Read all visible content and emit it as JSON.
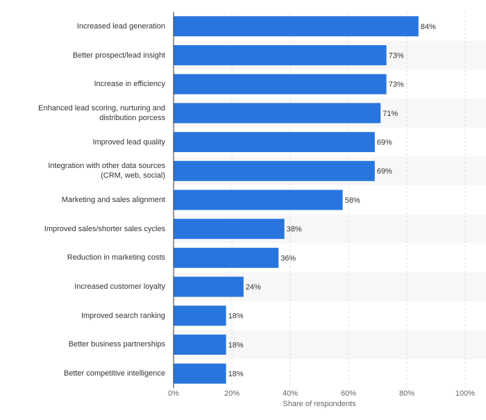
{
  "chart_data": {
    "type": "bar",
    "orientation": "horizontal",
    "categories": [
      "Increased lead generation",
      "Better prospect/lead insight",
      "Increase in efficiency",
      "Enhanced lead scoring, nurturing and\ndistribution porcess",
      "Improved lead quality",
      "Integration with other data sources\n(CRM, web, social)",
      "Marketing and sales alignment",
      "Improved sales/shorter sales cycles",
      "Reduction in marketing costs",
      "Increased customer loyalty",
      "Improved search ranking",
      "Better business partnerships",
      "Better competitive intelligence"
    ],
    "values": [
      84,
      73,
      73,
      71,
      69,
      69,
      58,
      38,
      36,
      24,
      18,
      18,
      18
    ],
    "value_labels": [
      "84%",
      "73%",
      "73%",
      "71%",
      "69%",
      "69%",
      "58%",
      "38%",
      "36%",
      "24%",
      "18%",
      "18%",
      "18%"
    ],
    "color": "#2876dd",
    "xlabel": "Share of respondents",
    "xlim": [
      0,
      100
    ],
    "xticks": [
      {
        "value": 0,
        "label": "0%"
      },
      {
        "value": 20,
        "label": "20%"
      },
      {
        "value": 40,
        "label": "40%"
      },
      {
        "value": 60,
        "label": "60%"
      },
      {
        "value": 80,
        "label": "80%"
      },
      {
        "value": 100,
        "label": "100%"
      }
    ],
    "grid": true
  }
}
